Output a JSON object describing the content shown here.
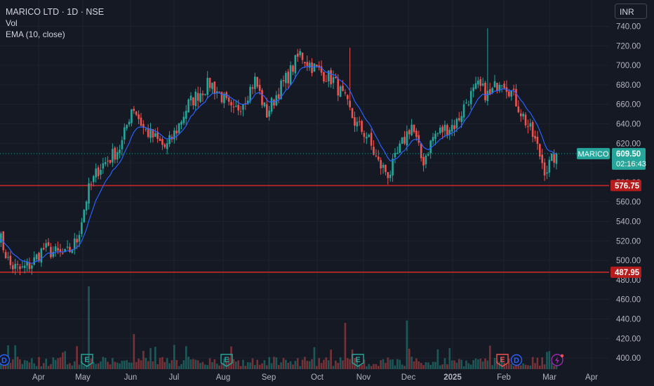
{
  "legend": {
    "title": "MARICO LTD · 1D · NSE",
    "vol": "Vol",
    "ema": "EMA (10, close)"
  },
  "currency": "INR",
  "price_tag": {
    "symbol": "MARICO",
    "price": "609.50",
    "countdown": "02:16:43"
  },
  "colors": {
    "background": "#151924",
    "up": "#26a69a",
    "down": "#ef5350",
    "ema": "#2962ff",
    "hline": "#c62828",
    "grid": "#1e222d",
    "axis_text": "#b2b5be"
  },
  "events": [
    {
      "type": "D",
      "date": "Mar",
      "color": "#2962ff"
    },
    {
      "type": "E",
      "date": "May",
      "color": "#26a69a"
    },
    {
      "type": "E",
      "date": "Aug",
      "color": "#26a69a"
    },
    {
      "type": "E",
      "date": "Nov",
      "color": "#26a69a"
    },
    {
      "type": "E",
      "date": "Feb",
      "color": "#ef5350"
    },
    {
      "type": "D",
      "date": "Feb",
      "color": "#2962ff"
    },
    {
      "type": "bolt",
      "date": "Mar",
      "color": "#9c27b0"
    }
  ],
  "chart_data": {
    "type": "candlestick",
    "title": "MARICO LTD · 1D · NSE",
    "y_ticks": [
      "740.00",
      "720.00",
      "700.00",
      "680.00",
      "660.00",
      "640.00",
      "620.00",
      "600.00",
      "580.00",
      "560.00",
      "540.00",
      "520.00",
      "500.00",
      "480.00",
      "460.00",
      "440.00",
      "420.00",
      "400.00"
    ],
    "ylim": [
      395,
      747
    ],
    "x_ticks": [
      "Apr",
      "May",
      "Jun",
      "Jul",
      "Aug",
      "Sep",
      "Oct",
      "Nov",
      "Dec",
      "2025",
      "Feb",
      "Mar",
      "Apr"
    ],
    "horizontal_lines": [
      {
        "value": 576.75,
        "label": "576.75"
      },
      {
        "value": 487.95,
        "label": "487.95"
      }
    ],
    "last_price": 609.5,
    "ema_period": 10,
    "anchors": [
      [
        "Mar",
        528
      ],
      [
        "Apr",
        495
      ],
      [
        "Apr",
        490
      ],
      [
        "Apr",
        497
      ],
      [
        "Apr",
        512
      ],
      [
        "Apr",
        508
      ],
      [
        "May",
        505
      ],
      [
        "May",
        520
      ],
      [
        "May",
        570
      ],
      [
        "May",
        595
      ],
      [
        "May",
        605
      ],
      [
        "Jun",
        618
      ],
      [
        "Jun",
        660
      ],
      [
        "Jun",
        635
      ],
      [
        "Jun",
        625
      ],
      [
        "Jul",
        615
      ],
      [
        "Jul",
        635
      ],
      [
        "Jul",
        660
      ],
      [
        "Jul",
        672
      ],
      [
        "Aug",
        682
      ],
      [
        "Aug",
        668
      ],
      [
        "Aug",
        650
      ],
      [
        "Aug",
        665
      ],
      [
        "Sep",
        685
      ],
      [
        "Sep",
        650
      ],
      [
        "Sep",
        672
      ],
      [
        "Sep",
        690
      ],
      [
        "Oct",
        712
      ],
      [
        "Oct",
        700
      ],
      [
        "Oct",
        692
      ],
      [
        "Oct",
        685
      ],
      [
        "Oct",
        665
      ],
      [
        "Oct",
        640
      ],
      [
        "Nov",
        628
      ],
      [
        "Nov",
        600
      ],
      [
        "Nov",
        588
      ],
      [
        "Dec",
        615
      ],
      [
        "Dec",
        640
      ],
      [
        "Dec",
        600
      ],
      [
        "Dec",
        628
      ],
      [
        "Dec",
        635
      ],
      [
        "2025",
        640
      ],
      [
        "2025",
        665
      ],
      [
        "2025",
        678
      ],
      [
        "2025",
        668
      ],
      [
        "Feb",
        688
      ],
      [
        "Feb",
        672
      ],
      [
        "Feb",
        648
      ],
      [
        "Mar",
        625
      ],
      [
        "Mar",
        592
      ],
      [
        "Mar",
        609.5
      ]
    ]
  }
}
